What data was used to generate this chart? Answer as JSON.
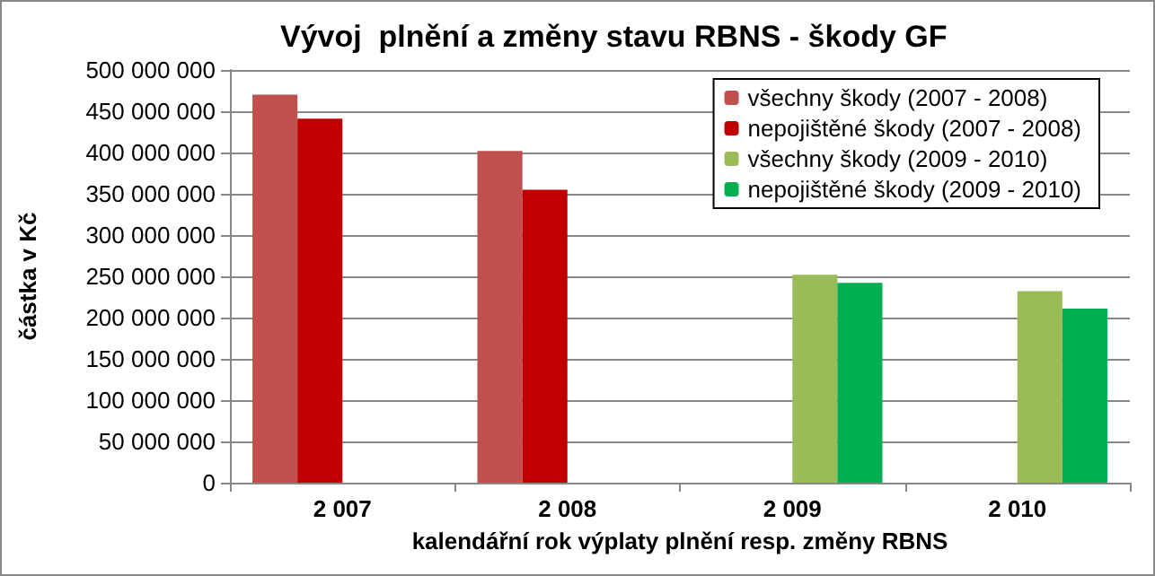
{
  "chart_data": {
    "type": "bar",
    "title": "Vývoj  plnění a změny stavu RBNS - škody GF",
    "xlabel": "kalendářní rok výplaty plnění resp. změny RBNS",
    "ylabel": "částka v Kč",
    "categories": [
      "2 007",
      "2 008",
      "2 009",
      "2 010"
    ],
    "series": [
      {
        "name": "všechny škody (2007 - 2008)",
        "color": "#c0504d",
        "values": [
          470000000,
          402000000,
          null,
          null
        ]
      },
      {
        "name": "nepojištěné škody (2007 - 2008)",
        "color": "#c00000",
        "values": [
          441000000,
          355000000,
          null,
          null
        ]
      },
      {
        "name": "všechny škody (2009 - 2010)",
        "color": "#9bbb59",
        "values": [
          null,
          null,
          252000000,
          232000000
        ]
      },
      {
        "name": "nepojištěné škody (2009 - 2010)",
        "color": "#00b050",
        "values": [
          null,
          null,
          242000000,
          211000000
        ]
      }
    ],
    "ylim": [
      0,
      500000000
    ],
    "yticks": [
      0,
      50000000,
      100000000,
      150000000,
      200000000,
      250000000,
      300000000,
      350000000,
      400000000,
      450000000,
      500000000
    ],
    "grid": "y",
    "legend": "top right"
  }
}
